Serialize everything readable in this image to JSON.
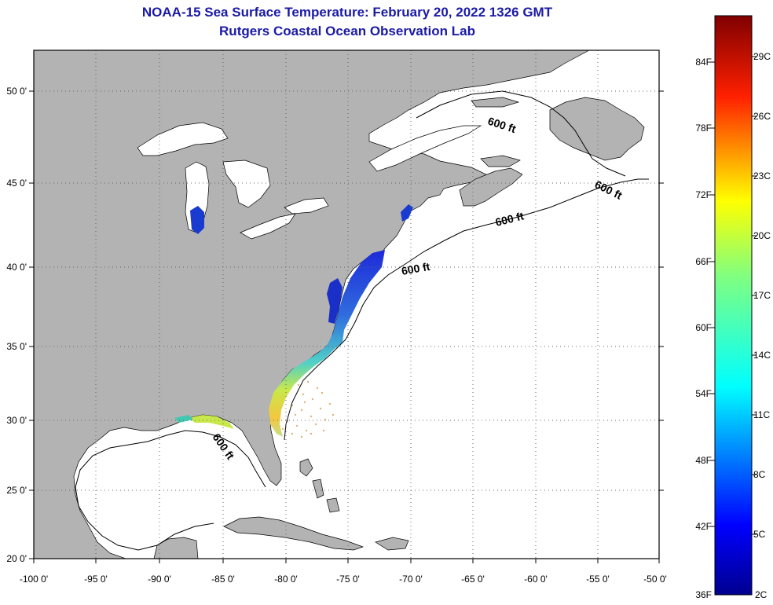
{
  "title": {
    "line1": "NOAA-15 Sea Surface Temperature:  February 20, 2022 1326 GMT",
    "line2": "Rutgers Coastal Ocean Observation Lab"
  },
  "map": {
    "lon_ticks": [
      "-100 0'",
      "-95 0'",
      "-90 0'",
      "-85 0'",
      "-80 0'",
      "-75 0'",
      "-70 0'",
      "-65 0'",
      "-60 0'",
      "-55 0'",
      "-50 0'"
    ],
    "lat_ticks": [
      "50 0'",
      "45 0'",
      "40 0'",
      "35 0'",
      "30 0'",
      "25 0'",
      "20 0'"
    ],
    "contour_labels": [
      "600 ft",
      "600 ft",
      "600 ft",
      "600 ft",
      "600 ft"
    ],
    "colors": {
      "land": "#b3b3b3",
      "ocean": "#ffffff",
      "grid": "#555555"
    }
  },
  "colorbar": {
    "fahrenheit": [
      "84F",
      "78F",
      "72F",
      "66F",
      "60F",
      "54F",
      "48F",
      "42F",
      "36F"
    ],
    "celsius": [
      "29C",
      "26C",
      "23C",
      "20C",
      "17C",
      "14C",
      "11C",
      "8C",
      "5C",
      "2C"
    ]
  }
}
